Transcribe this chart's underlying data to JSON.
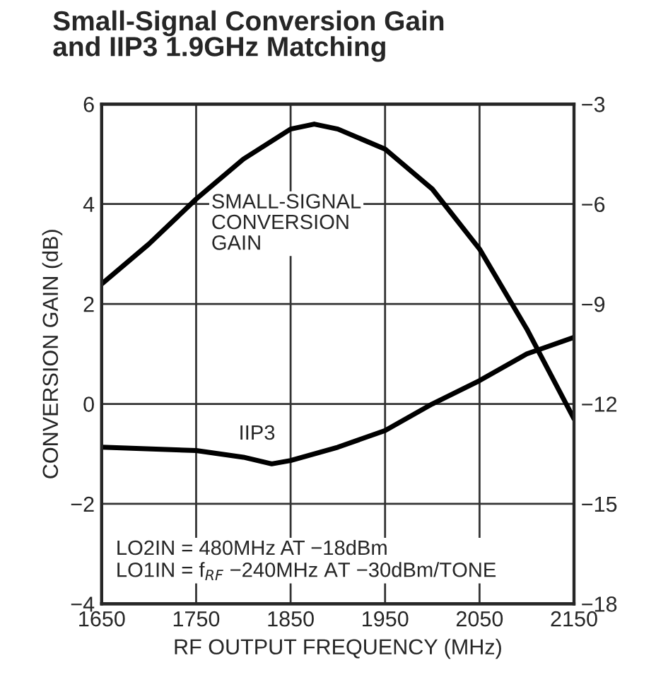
{
  "chart_data": {
    "type": "line",
    "title": "Small-Signal Conversion Gain\nand IIP3 1.9GHz Matching",
    "xlabel": "RF OUTPUT FREQUENCY (MHz)",
    "ylabel": "CONVERSION GAIN (dB)",
    "x": [
      1650,
      1700,
      1750,
      1800,
      1850,
      1875,
      1900,
      1950,
      2000,
      2050,
      2100,
      2150
    ],
    "series": [
      {
        "name": "SMALL-SIGNAL\nCONVERSION\nGAIN",
        "color": "#000000",
        "values": [
          2.4,
          3.2,
          4.1,
          4.9,
          5.5,
          5.6,
          5.5,
          5.1,
          4.3,
          3.1,
          1.5,
          -0.3
        ]
      },
      {
        "name": "IIP3",
        "color": "#000000",
        "axis": "y2",
        "x": [
          1650,
          1750,
          1800,
          1830,
          1850,
          1900,
          1950,
          2000,
          2050,
          2100,
          2150
        ],
        "values": [
          -13.3,
          -13.4,
          -13.6,
          -13.8,
          -13.7,
          -13.3,
          -12.8,
          -12.0,
          -11.3,
          -10.5,
          -10.0
        ]
      }
    ],
    "annotations": [
      "LO2IN = 480MHz AT −18dBm",
      "LO1IN = f$_{RF}$ −240MHz AT −30dBm/TONE"
    ],
    "xlim": [
      1650,
      2150
    ],
    "xticks": [
      1650,
      1750,
      1850,
      1950,
      2050,
      2150
    ],
    "ylim": [
      -4,
      6
    ],
    "yticks": [
      {
        "value": -4,
        "label": "−4"
      },
      {
        "value": -2,
        "label": "−2"
      },
      0,
      2,
      4,
      6
    ],
    "y2lim": [
      -18,
      -3
    ],
    "y2ticks": [
      {
        "value": -18,
        "label": "−18"
      },
      {
        "value": -15,
        "label": "−15"
      },
      {
        "value": -12,
        "label": "−12"
      },
      {
        "value": -9,
        "label": "−9"
      },
      {
        "value": -6,
        "label": "−6"
      },
      {
        "value": -3,
        "label": "−3"
      }
    ],
    "grid": true,
    "legend": false,
    "line_style": "solid",
    "marker": "none"
  }
}
